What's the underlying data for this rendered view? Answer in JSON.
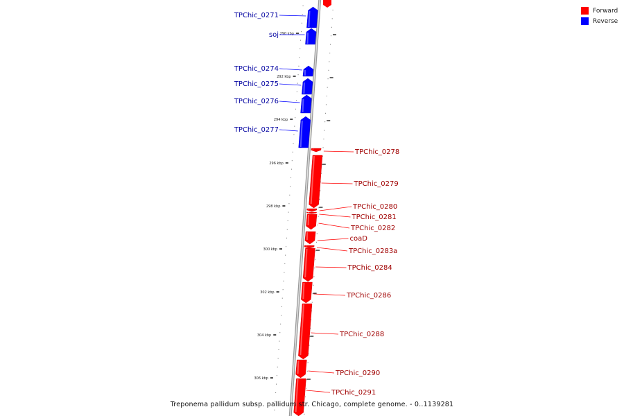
{
  "legend": {
    "forward_label": "Forward",
    "reverse_label": "Reverse",
    "forward_color": "#ff0000",
    "reverse_color": "#0000ff"
  },
  "caption": "Treponema pallidum subsp. pallidum str. Chicago, complete genome. - 0..1139281",
  "ticks": [
    "290 kbp",
    "292 kbp",
    "294 kbp",
    "296 kbp",
    "298 kbp",
    "300 kbp",
    "302 kbp",
    "304 kbp",
    "306 kbp"
  ],
  "genes": [
    {
      "label": "TPChic_0271",
      "strand": "reverse"
    },
    {
      "label": "soj",
      "strand": "reverse"
    },
    {
      "label": "TPChic_0274",
      "strand": "reverse"
    },
    {
      "label": "TPChic_0275",
      "strand": "reverse"
    },
    {
      "label": "TPChic_0276",
      "strand": "reverse"
    },
    {
      "label": "TPChic_0277",
      "strand": "reverse"
    },
    {
      "label": "TPChic_0278",
      "strand": "forward"
    },
    {
      "label": "TPChic_0279",
      "strand": "forward"
    },
    {
      "label": "TPChic_0280",
      "strand": "forward"
    },
    {
      "label": "TPChic_0281",
      "strand": "forward"
    },
    {
      "label": "TPChic_0282",
      "strand": "forward"
    },
    {
      "label": "coaD",
      "strand": "forward"
    },
    {
      "label": "TPChic_0283a",
      "strand": "forward"
    },
    {
      "label": "TPChic_0284",
      "strand": "forward"
    },
    {
      "label": "TPChic_0286",
      "strand": "forward"
    },
    {
      "label": "TPChic_0288",
      "strand": "forward"
    },
    {
      "label": "TPChic_0290",
      "strand": "forward"
    },
    {
      "label": "TPChic_0291",
      "strand": "forward"
    }
  ]
}
